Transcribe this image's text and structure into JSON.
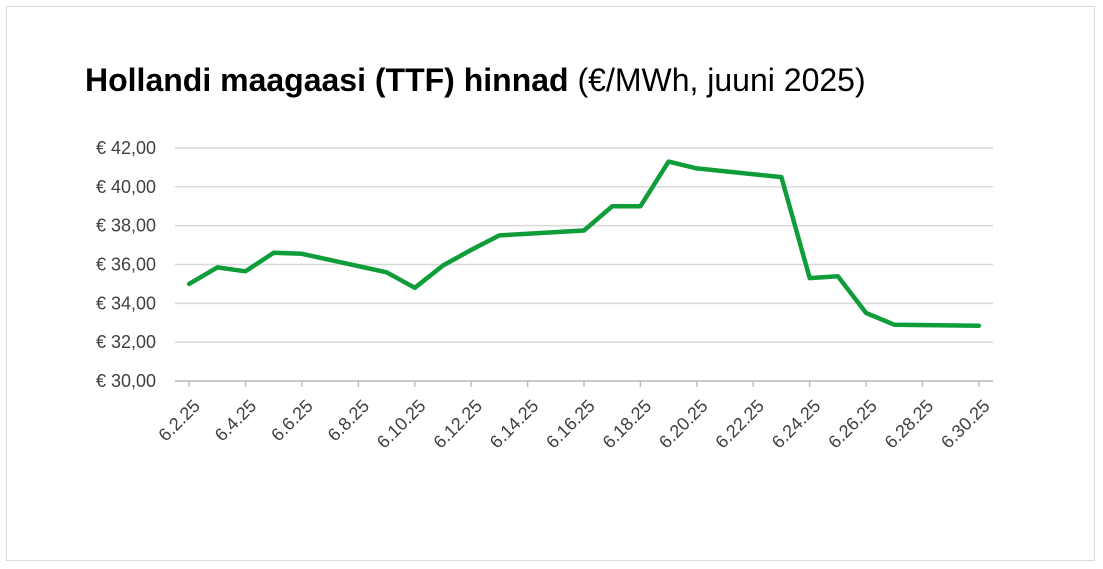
{
  "chart_data": {
    "type": "line",
    "title": "Hollandi maagaasi (TTF) hinnad",
    "subtitle": "(€/MWh, juuni 2025)",
    "xlabel": "",
    "ylabel": "",
    "ylim": [
      30,
      42
    ],
    "y_ticks": [
      "€ 30,00",
      "€ 32,00",
      "€ 34,00",
      "€ 36,00",
      "€ 38,00",
      "€ 40,00",
      "€ 42,00"
    ],
    "x_ticks": [
      "6.2.25",
      "6.4.25",
      "6.6.25",
      "6.8.25",
      "6.10.25",
      "6.12.25",
      "6.14.25",
      "6.16.25",
      "6.18.25",
      "6.20.25",
      "6.22.25",
      "6.24.25",
      "6.26.25",
      "6.28.25",
      "6.30.25"
    ],
    "grid": true,
    "legend": "none",
    "line_color": "#0f9d3a",
    "series": [
      {
        "x": [
          "6.2.25",
          "6.3.25",
          "6.4.25",
          "6.5.25",
          "6.6.25",
          "6.9.25",
          "6.10.25",
          "6.11.25",
          "6.12.25",
          "6.13.25",
          "6.16.25",
          "6.17.25",
          "6.18.25",
          "6.19.25",
          "6.20.25",
          "6.23.25",
          "6.24.25",
          "6.25.25",
          "6.26.25",
          "6.27.25",
          "6.30.25"
        ],
        "values": [
          35.0,
          35.85,
          35.65,
          36.6,
          36.55,
          35.6,
          34.8,
          35.95,
          36.75,
          37.5,
          37.75,
          39.0,
          39.0,
          41.3,
          40.95,
          40.5,
          35.3,
          35.4,
          33.5,
          32.9,
          32.85
        ]
      }
    ]
  }
}
